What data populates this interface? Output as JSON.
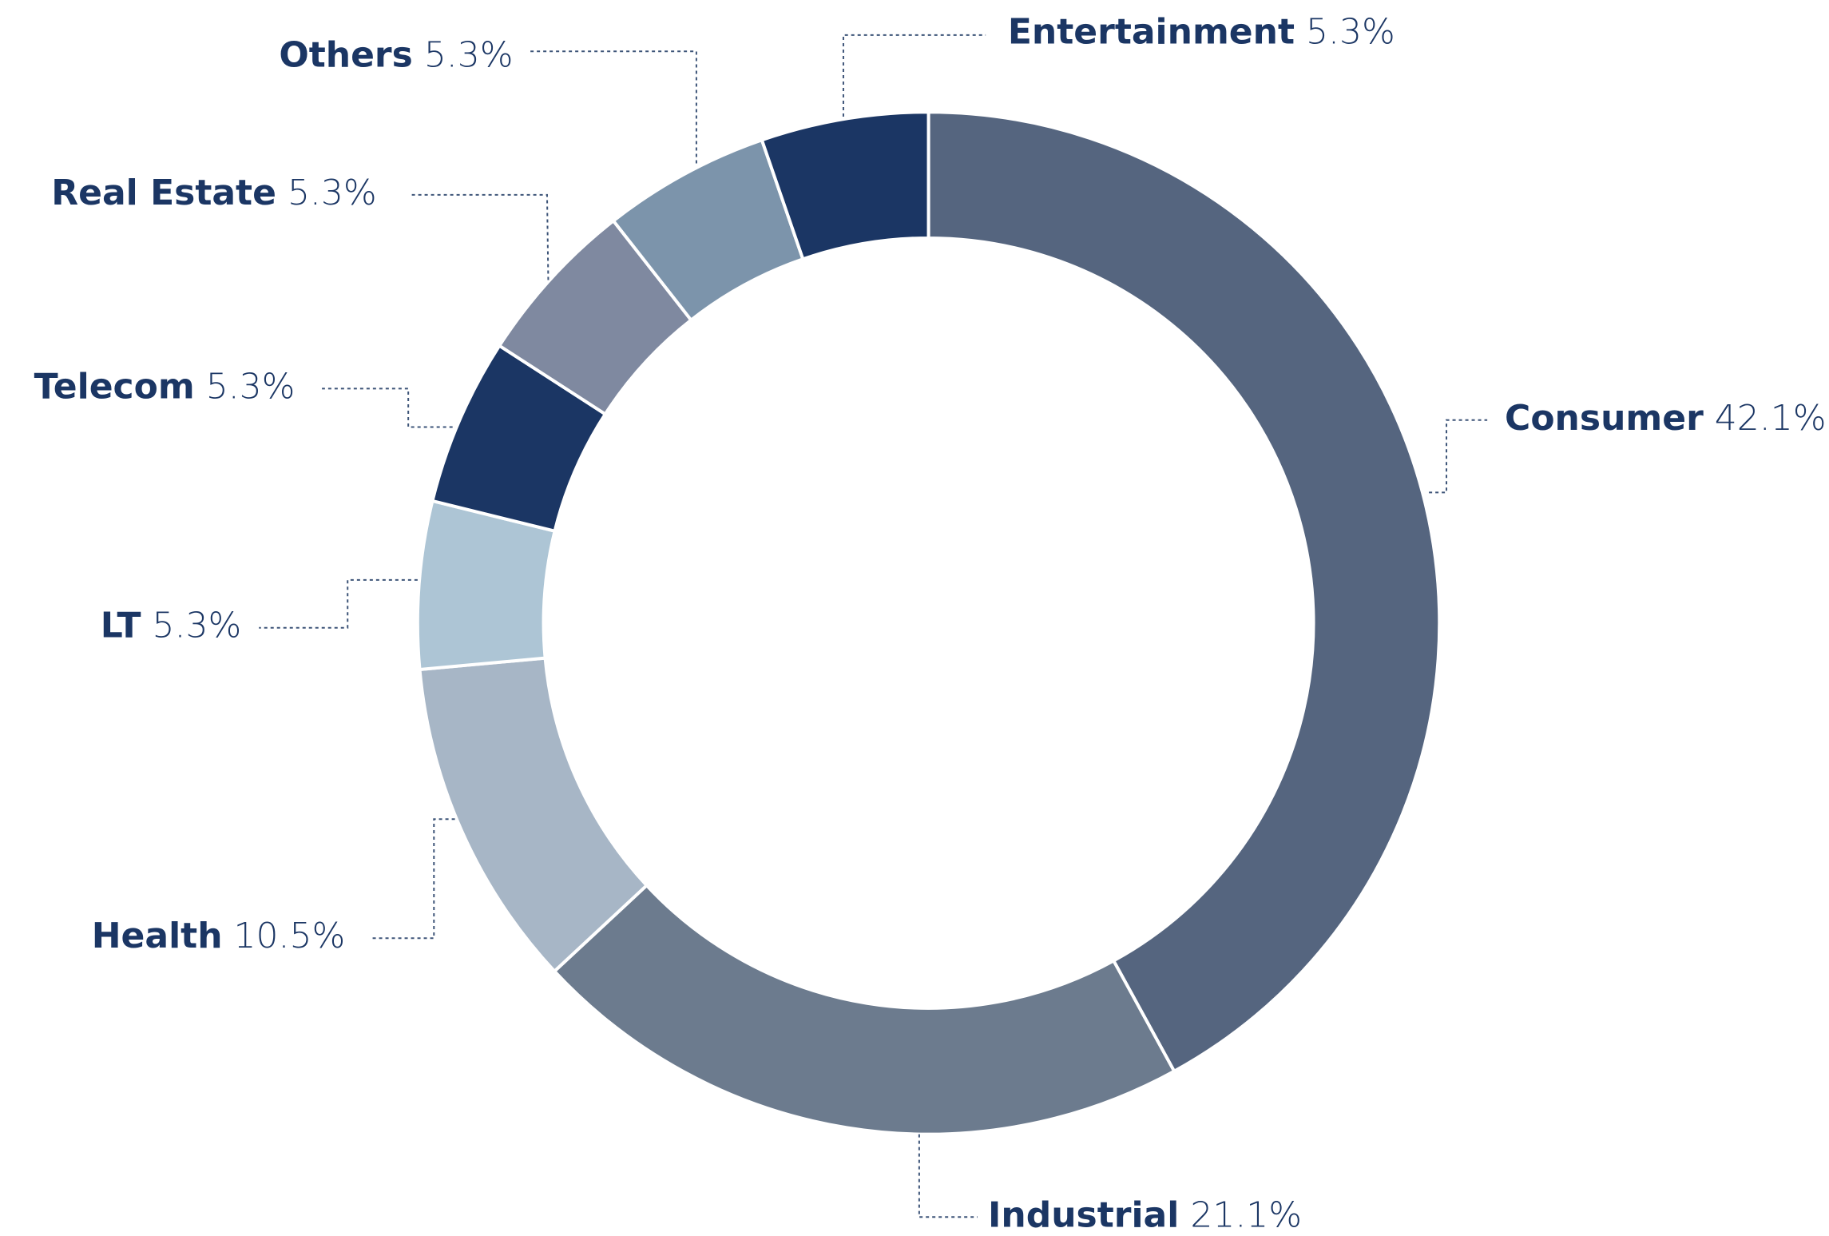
{
  "chart_data": {
    "type": "donut",
    "categories": [
      "Consumer",
      "Industrial",
      "Health",
      "LT",
      "Telecom",
      "Real Estate",
      "Others",
      "Entertainment"
    ],
    "values": [
      42.1,
      21.1,
      10.5,
      5.3,
      5.3,
      5.3,
      5.3,
      5.3
    ],
    "value_labels": [
      "42.1%",
      "21.1%",
      "10.5%",
      "5.3%",
      "5.3%",
      "5.3%",
      "5.3%",
      "5.3%"
    ],
    "colors": [
      "#55657f",
      "#6c7b8e",
      "#a7b6c6",
      "#adc5d5",
      "#1b3664",
      "#7f89a0",
      "#7c94ab",
      "#1b3664"
    ]
  }
}
